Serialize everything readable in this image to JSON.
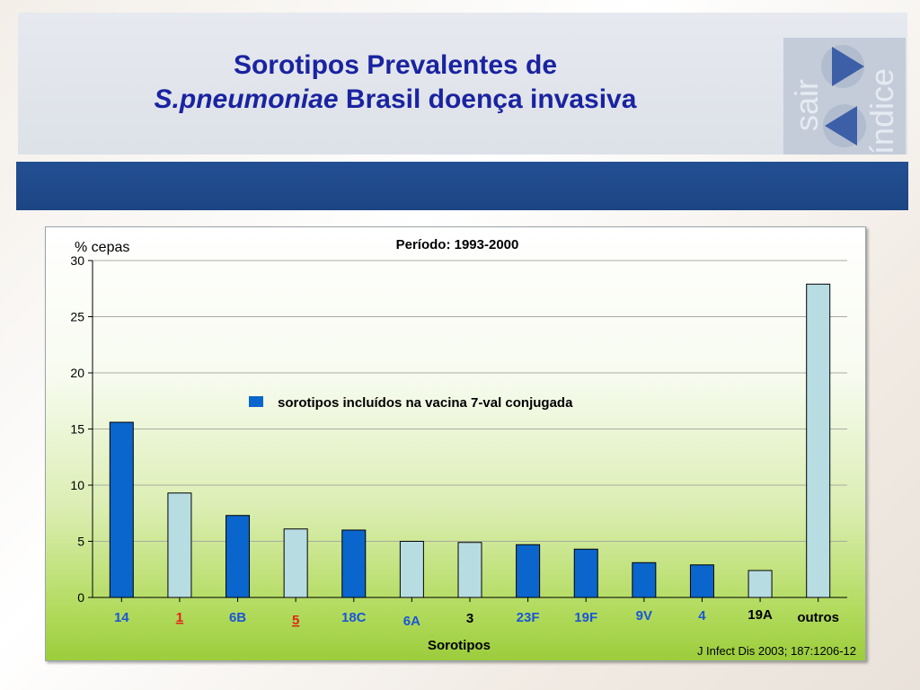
{
  "slide": {
    "title_line1": "Sorotipos Prevalentes de",
    "title_line2_italic": "S.pneumoniae",
    "title_line2_rest": " Brasil doença invasiva"
  },
  "nav": {
    "exit_label": "sair",
    "index_label": "índice",
    "next_icon": "play-right-icon",
    "prev_icon": "play-left-icon"
  },
  "chart_data": {
    "type": "bar",
    "title": "Período: 1993-2000",
    "ylabel": "% cepas",
    "xlabel": "Sorotipos",
    "ylim": [
      0,
      30
    ],
    "yticks": [
      0,
      5,
      10,
      15,
      20,
      25,
      30
    ],
    "grid": true,
    "categories": [
      "14",
      "1",
      "6B",
      "5",
      "18C",
      "6A",
      "3",
      "23F",
      "19F",
      "9V",
      "4",
      "19A",
      "outros"
    ],
    "values": [
      15.6,
      9.3,
      7.3,
      6.1,
      6.0,
      5.0,
      4.9,
      4.7,
      4.3,
      3.1,
      2.9,
      2.4,
      27.9
    ],
    "in_vaccine": [
      true,
      false,
      true,
      false,
      true,
      false,
      false,
      true,
      true,
      true,
      true,
      false,
      false
    ],
    "label_colors": [
      "#1a56d6",
      "#e2231a",
      "#1a56d6",
      "#e2231a",
      "#1a56d6",
      "#1a56d6",
      "#000000",
      "#1a56d6",
      "#1a56d6",
      "#1a56d6",
      "#1a56d6",
      "#000000",
      "#000000"
    ],
    "label_underline": [
      false,
      true,
      false,
      true,
      false,
      false,
      false,
      false,
      false,
      false,
      false,
      false,
      false
    ],
    "label_offset_y": [
      0,
      0,
      0,
      3,
      0,
      4,
      1,
      0,
      0,
      -2,
      -2,
      -3,
      0
    ],
    "colors": {
      "vaccine": "#0a66cc",
      "other": "#b7dde3",
      "stroke": "#000000"
    },
    "legend": {
      "label": "sorotipos incluídos na vacina 7-val conjugada",
      "position": "center"
    },
    "source": "J Infect Dis 2003; 187:1206-12"
  }
}
